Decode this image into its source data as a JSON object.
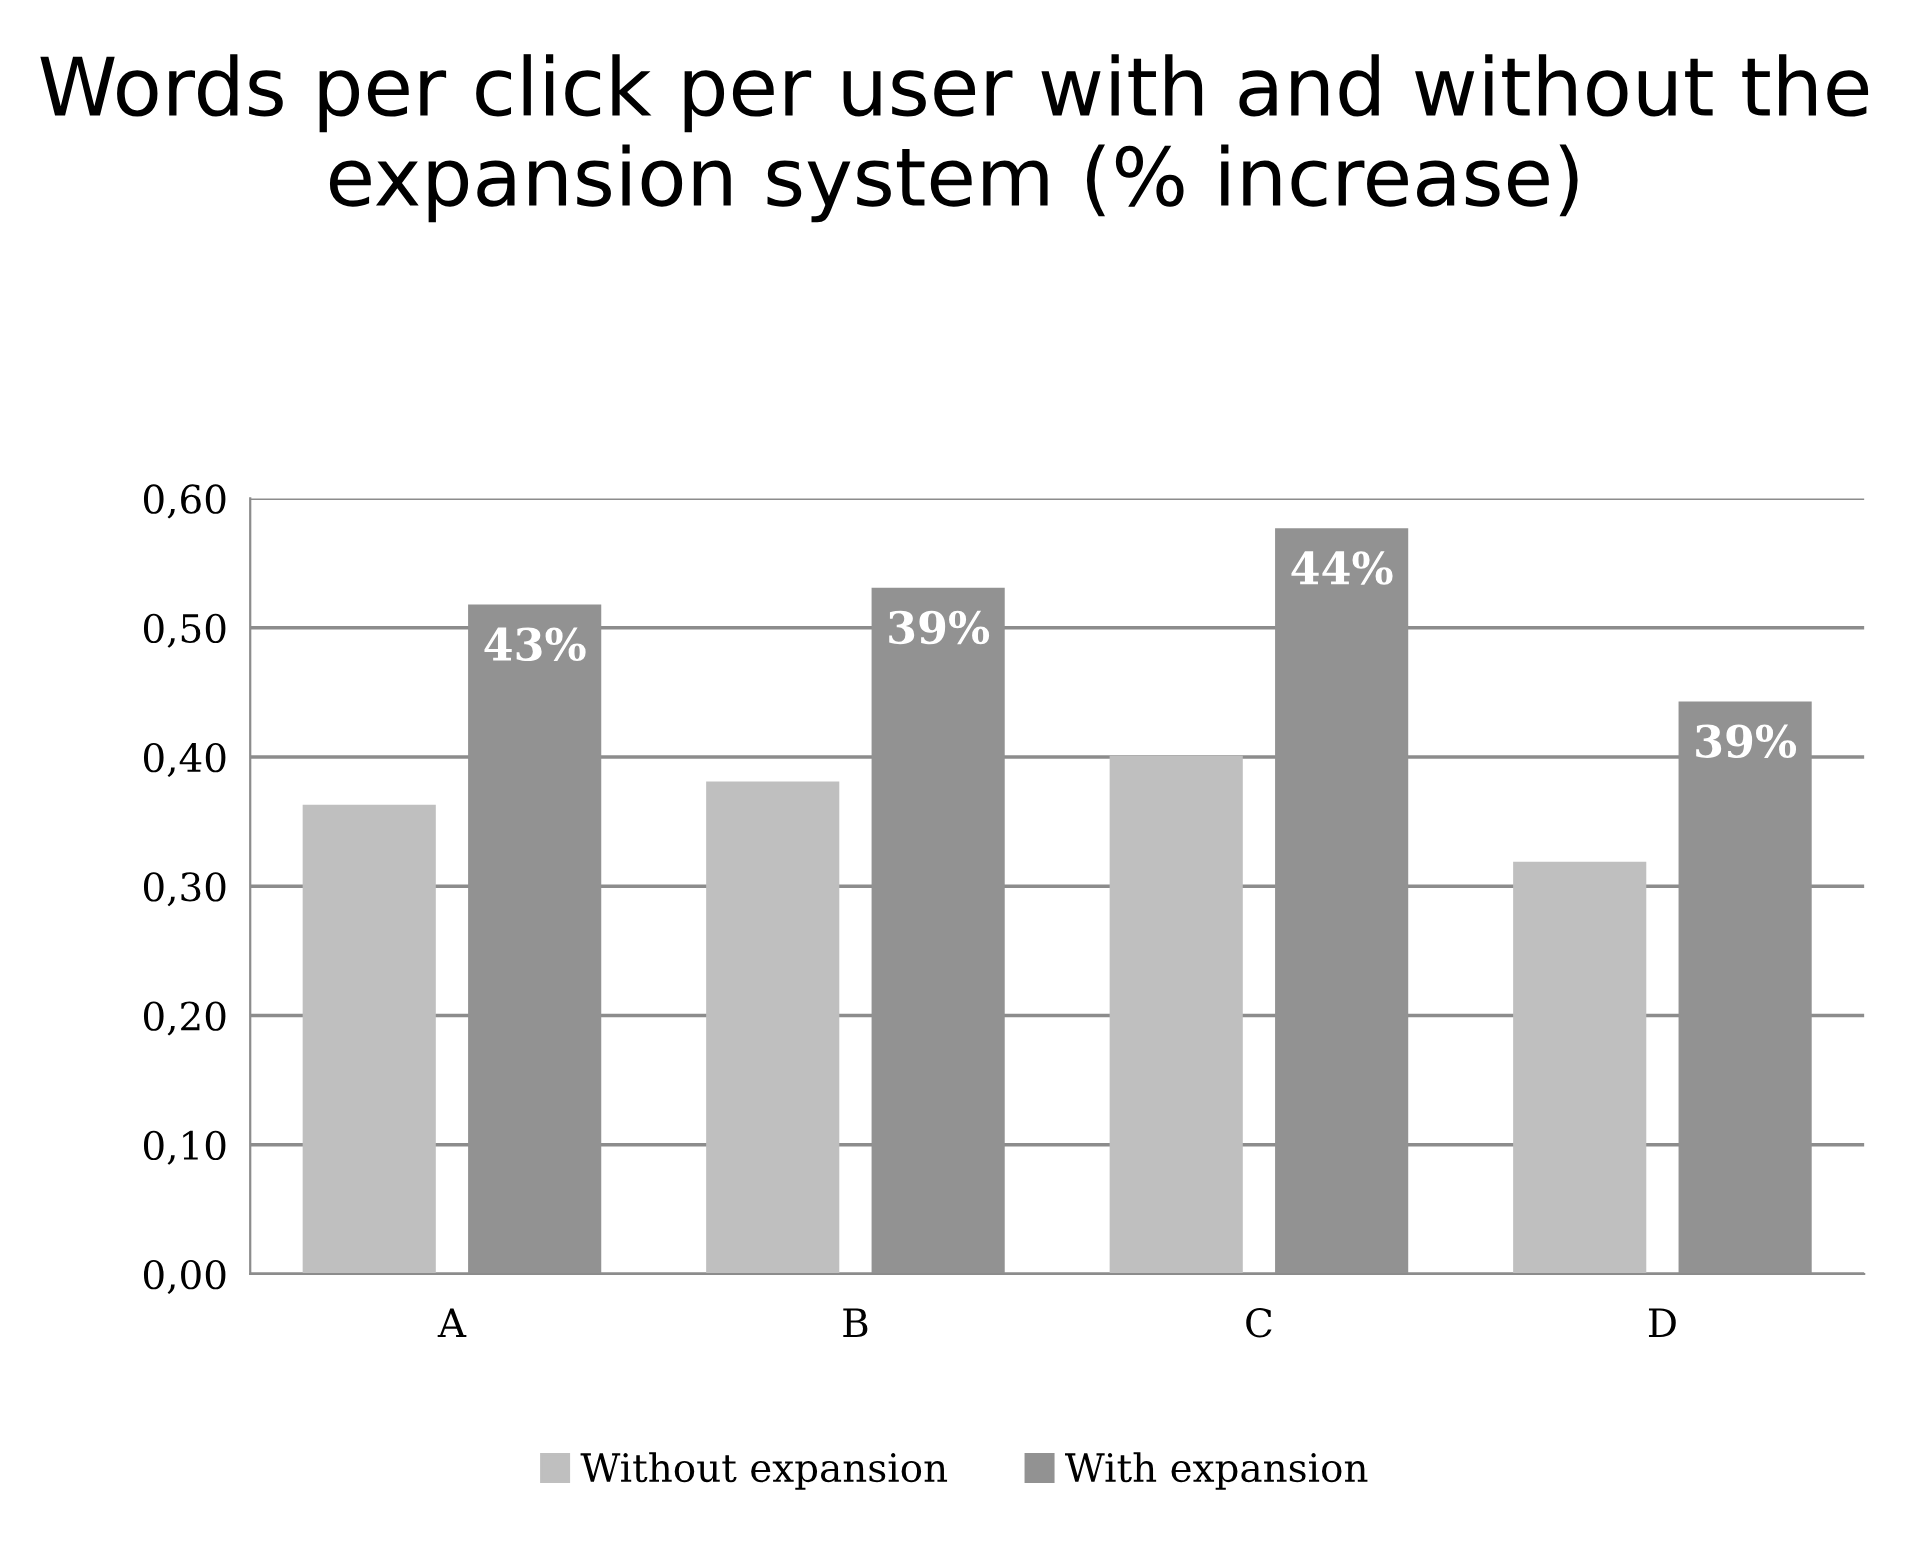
{
  "chart_data": {
    "type": "bar",
    "title": "Words per click per user with and without the expansion system (% increase)",
    "categories": [
      "A",
      "B",
      "C",
      "D"
    ],
    "series": [
      {
        "name": "Without expansion",
        "color": "#bfbfbf",
        "values": [
          0.363,
          0.381,
          0.401,
          0.319
        ]
      },
      {
        "name": "With expansion",
        "color": "#929292",
        "values": [
          0.518,
          0.531,
          0.577,
          0.443
        ]
      }
    ],
    "annotations": [
      "43%",
      "39%",
      "44%",
      "39%"
    ],
    "ylim": [
      0,
      0.6
    ],
    "yticks": [
      {
        "value": 0,
        "label": "0,00"
      },
      {
        "value": 0.1,
        "label": "0,10"
      },
      {
        "value": 0.2,
        "label": "0,20"
      },
      {
        "value": 0.3,
        "label": "0,30"
      },
      {
        "value": 0.4,
        "label": "0,40"
      },
      {
        "value": 0.5,
        "label": "0,50"
      },
      {
        "value": 0.6,
        "label": "0,60"
      }
    ],
    "grid": "y",
    "legend": "bottom"
  }
}
